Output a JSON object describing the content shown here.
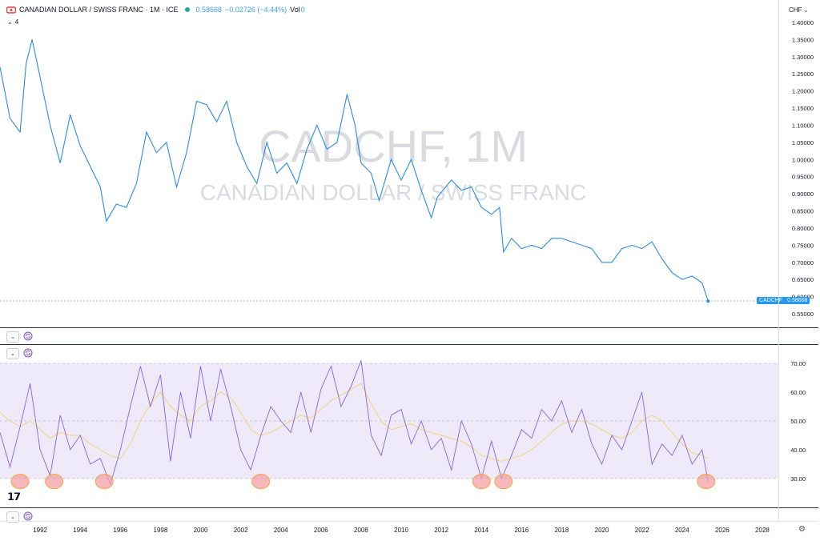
{
  "legend": {
    "title": "CANADIAN DOLLAR / SWISS FRANC · 1M · ICE",
    "price": "0.58668",
    "change": "−0.02726 (−4.44%)",
    "vol_label": "Vol",
    "vol_value": "0",
    "collapse_label": "4"
  },
  "price_axis": {
    "currency": "CHF",
    "ticks": [
      "1.40000",
      "1.35000",
      "1.30000",
      "1.25000",
      "1.20000",
      "1.15000",
      "1.10000",
      "1.05000",
      "1.00000",
      "0.95000",
      "0.90000",
      "0.85000",
      "0.80000",
      "0.75000",
      "0.70000",
      "0.65000",
      "0.60000",
      "0.55000"
    ],
    "last_label_symbol": "CADCHF",
    "last_label_value": "0.58668"
  },
  "watermark": {
    "symbol": "CADCHF, 1M",
    "name": "CANADIAN DOLLAR / SWISS FRANC"
  },
  "rsi_axis": {
    "ticks": [
      "70.00",
      "60.00",
      "50.00",
      "40.00",
      "30.00"
    ]
  },
  "time_axis": {
    "ticks": [
      "1992",
      "1994",
      "1996",
      "1998",
      "2000",
      "2002",
      "2004",
      "2006",
      "2008",
      "2010",
      "2012",
      "2014",
      "2016",
      "2018",
      "2020",
      "2022",
      "2024",
      "2026",
      "2028"
    ]
  },
  "colors": {
    "price_line": "#2a8de0",
    "rsi_line": "#8b63d6",
    "rsi_ma": "#f5d37a",
    "rsi_band": "#efeafa",
    "highlight": "#f4a0a8",
    "highlight_stroke": "#f0a93a"
  },
  "chart_data": [
    {
      "type": "line",
      "title": "CANADIAN DOLLAR / SWISS FRANC · 1M · ICE",
      "ylim": [
        0.55,
        1.4
      ],
      "x": [
        1990.0,
        1990.5,
        1991.0,
        1991.3,
        1991.6,
        1992.0,
        1992.5,
        1993.0,
        1993.5,
        1994.0,
        1994.5,
        1995.0,
        1995.3,
        1995.8,
        1996.3,
        1996.8,
        1997.3,
        1997.8,
        1998.3,
        1998.8,
        1999.3,
        1999.8,
        2000.3,
        2000.8,
        2001.3,
        2001.8,
        2002.3,
        2002.8,
        2003.3,
        2003.8,
        2004.3,
        2004.8,
        2005.3,
        2005.8,
        2006.3,
        2006.8,
        2007.3,
        2007.7,
        2008.0,
        2008.5,
        2008.9,
        2009.5,
        2010.0,
        2010.5,
        2011.0,
        2011.5,
        2011.8,
        2012.5,
        2013.0,
        2013.5,
        2014.0,
        2014.5,
        2014.9,
        2015.1,
        2015.5,
        2016.0,
        2016.5,
        2017.0,
        2017.5,
        2018.0,
        2018.5,
        2019.0,
        2019.5,
        2020.0,
        2020.5,
        2021.0,
        2021.5,
        2022.0,
        2022.5,
        2023.0,
        2023.5,
        2024.0,
        2024.5,
        2025.0,
        2025.3
      ],
      "series": [
        {
          "values": [
            1.27,
            1.12,
            1.08,
            1.28,
            1.35,
            1.24,
            1.1,
            0.99,
            1.13,
            1.04,
            0.98,
            0.92,
            0.82,
            0.87,
            0.86,
            0.93,
            1.08,
            1.02,
            1.05,
            0.92,
            1.02,
            1.17,
            1.16,
            1.11,
            1.17,
            1.05,
            0.98,
            0.93,
            1.05,
            0.96,
            0.99,
            0.93,
            1.03,
            1.1,
            1.03,
            1.05,
            1.19,
            1.1,
            0.99,
            0.96,
            0.88,
            1.0,
            0.94,
            1.0,
            0.91,
            0.83,
            0.89,
            0.94,
            0.91,
            0.92,
            0.86,
            0.84,
            0.86,
            0.73,
            0.77,
            0.74,
            0.75,
            0.74,
            0.77,
            0.77,
            0.76,
            0.75,
            0.74,
            0.7,
            0.7,
            0.74,
            0.75,
            0.74,
            0.76,
            0.71,
            0.67,
            0.65,
            0.66,
            0.64,
            0.5867
          ]
        }
      ],
      "last_value": 0.58668
    },
    {
      "type": "line",
      "ylim": [
        20,
        72
      ],
      "x": [
        1990.0,
        1990.5,
        1991.0,
        1991.5,
        1992.0,
        1992.5,
        1993.0,
        1993.5,
        1994.0,
        1994.5,
        1995.0,
        1995.5,
        1996.0,
        1996.5,
        1997.0,
        1997.5,
        1998.0,
        1998.5,
        1999.0,
        1999.5,
        2000.0,
        2000.5,
        2001.0,
        2001.5,
        2002.0,
        2002.5,
        2003.0,
        2003.5,
        2004.0,
        2004.5,
        2005.0,
        2005.5,
        2006.0,
        2006.5,
        2007.0,
        2007.5,
        2008.0,
        2008.5,
        2009.0,
        2009.5,
        2010.0,
        2010.5,
        2011.0,
        2011.5,
        2012.0,
        2012.5,
        2013.0,
        2013.5,
        2014.0,
        2014.5,
        2015.0,
        2015.5,
        2016.0,
        2016.5,
        2017.0,
        2017.5,
        2018.0,
        2018.5,
        2019.0,
        2019.5,
        2020.0,
        2020.5,
        2021.0,
        2021.5,
        2022.0,
        2022.5,
        2023.0,
        2023.5,
        2024.0,
        2024.5,
        2025.0,
        2025.3
      ],
      "series": [
        {
          "values": [
            46,
            34,
            48,
            63,
            40,
            31,
            52,
            40,
            45,
            35,
            37,
            28,
            40,
            55,
            69,
            55,
            66,
            36,
            60,
            44,
            69,
            50,
            68,
            55,
            40,
            33,
            45,
            55,
            50,
            46,
            60,
            46,
            61,
            69,
            55,
            62,
            71,
            45,
            38,
            52,
            54,
            42,
            50,
            40,
            44,
            33,
            50,
            42,
            30,
            43,
            30,
            38,
            47,
            44,
            54,
            50,
            57,
            46,
            54,
            42,
            35,
            45,
            40,
            50,
            60,
            35,
            42,
            38,
            45,
            35,
            40,
            29
          ]
        },
        {
          "values": [
            53,
            50,
            48,
            50,
            47,
            44,
            46,
            45,
            45,
            42,
            40,
            38,
            37,
            42,
            50,
            56,
            60,
            55,
            52,
            50,
            55,
            57,
            60,
            58,
            53,
            47,
            45,
            46,
            48,
            50,
            52,
            51,
            54,
            57,
            59,
            61,
            63,
            56,
            50,
            47,
            48,
            49,
            47,
            46,
            45,
            44,
            43,
            41,
            38,
            37,
            36,
            37,
            38,
            40,
            43,
            46,
            49,
            50,
            50,
            49,
            47,
            45,
            44,
            46,
            50,
            52,
            50,
            46,
            42,
            39,
            38,
            37
          ]
        }
      ],
      "highlighted_lows": [
        1991.0,
        1992.7,
        1995.2,
        2003.0,
        2014.0,
        2015.1,
        2025.2
      ]
    }
  ]
}
